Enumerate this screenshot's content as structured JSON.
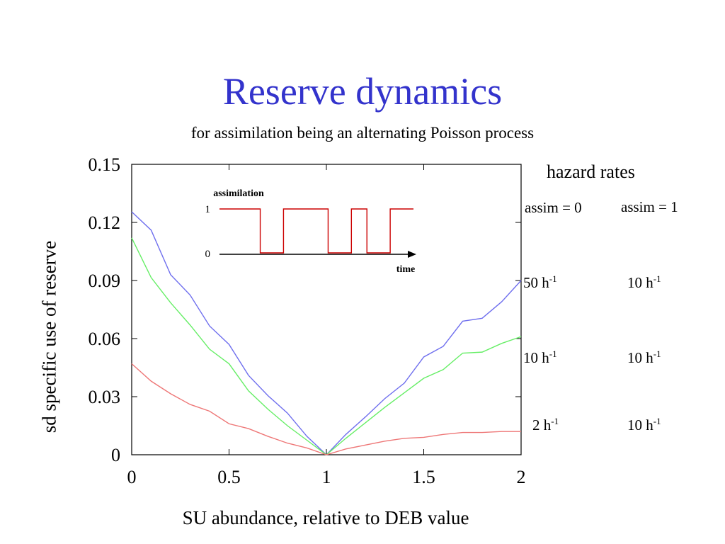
{
  "title": "Reserve dynamics",
  "subtitle": "for assimilation being an alternating Poisson process",
  "chart_data": {
    "type": "line",
    "xlabel": "SU abundance, relative to DEB value",
    "ylabel": "sd specific use of reserve",
    "xlim": [
      0,
      2
    ],
    "ylim": [
      0,
      0.15
    ],
    "x_ticks": [
      "0",
      "0.5",
      "1",
      "1.5",
      "2"
    ],
    "y_ticks": [
      "0",
      "0.03",
      "0.06",
      "0.09",
      "0.12",
      "0.15"
    ],
    "x": [
      0,
      0.1,
      0.2,
      0.3,
      0.4,
      0.5,
      0.6,
      0.7,
      0.8,
      0.9,
      1.0,
      1.1,
      1.2,
      1.3,
      1.4,
      1.5,
      1.6,
      1.7,
      1.8,
      1.9,
      2.0
    ],
    "series": [
      {
        "color": "#6f6fee",
        "values": [
          0.1255,
          0.116,
          0.093,
          0.0825,
          0.0665,
          0.057,
          0.041,
          0.0305,
          0.0215,
          0.0095,
          0.0,
          0.0105,
          0.0195,
          0.029,
          0.037,
          0.0505,
          0.056,
          0.069,
          0.0705,
          0.079,
          0.09
        ]
      },
      {
        "color": "#66ee66",
        "values": [
          0.112,
          0.0915,
          0.0785,
          0.067,
          0.0545,
          0.047,
          0.033,
          0.0235,
          0.015,
          0.0075,
          0.0,
          0.0085,
          0.0165,
          0.0245,
          0.032,
          0.0395,
          0.044,
          0.0525,
          0.053,
          0.0575,
          0.061
        ]
      },
      {
        "color": "#ee7777",
        "values": [
          0.047,
          0.038,
          0.0315,
          0.026,
          0.0225,
          0.016,
          0.0135,
          0.0095,
          0.006,
          0.0035,
          0.0,
          0.003,
          0.005,
          0.007,
          0.0085,
          0.009,
          0.0105,
          0.0115,
          0.0115,
          0.012,
          0.012
        ]
      }
    ],
    "inset": {
      "ylabel": "assimilation",
      "xlabel": "time",
      "y_ticks": [
        "1",
        "0"
      ],
      "color": "#cc0000",
      "segments": [
        [
          0,
          1
        ],
        [
          0.21,
          0
        ],
        [
          0.33,
          1
        ],
        [
          0.56,
          0
        ],
        [
          0.68,
          1
        ],
        [
          0.76,
          0
        ],
        [
          0.88,
          1
        ],
        [
          1.0,
          1
        ]
      ]
    }
  },
  "legend": {
    "title": "hazard rates",
    "col1_head": "assim = 0",
    "col2_head": "assim = 1",
    "unit_sup": "-1",
    "rows": [
      {
        "assim0": "50 h",
        "assim1": "10 h"
      },
      {
        "assim0": "10 h",
        "assim1": "10 h"
      },
      {
        "assim0": "2 h",
        "assim1": "10 h"
      }
    ]
  }
}
